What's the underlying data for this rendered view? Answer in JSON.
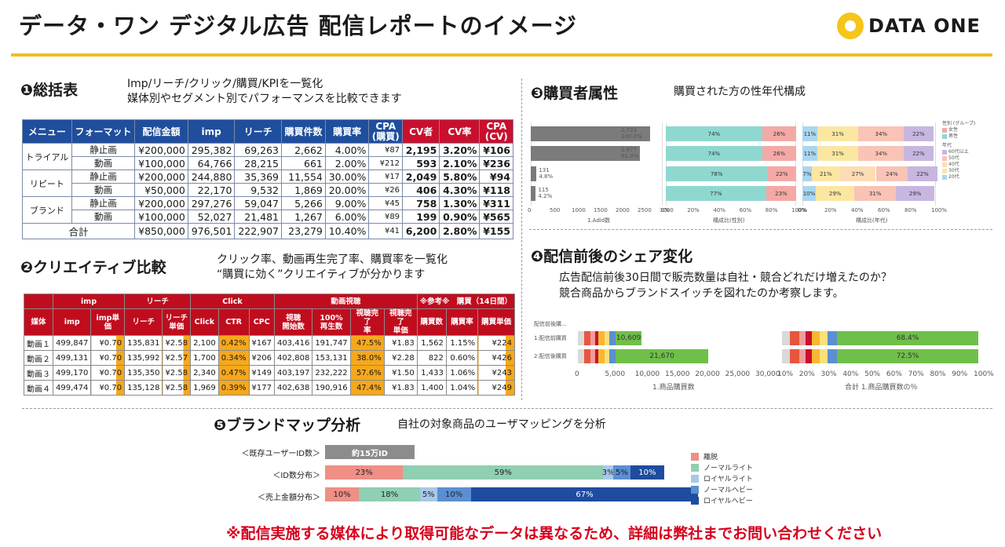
{
  "header": {
    "title": "データ・ワン デジタル広告 配信レポートのイメージ",
    "logo_text": "DATA ONE",
    "accent_color": "#f2be1a"
  },
  "s1": {
    "title": "❶総括表",
    "desc1": "Imp/リーチ/クリック/購買/KPIを一覧化",
    "desc2": "媒体別やセグメント別でパフォーマンスを比較できます",
    "headers": [
      "メニュー",
      "フォーマット",
      "配信金額",
      "imp",
      "リーチ",
      "購買件数",
      "購買率",
      "CPA\n(購買)",
      "CV者",
      "CV率",
      "CPA\n(CV)"
    ],
    "groups": [
      "トライアル",
      "リピート",
      "ブランド"
    ],
    "rows": [
      [
        "静止画",
        "¥200,000",
        "295,382",
        "69,263",
        "2,662",
        "4.00%",
        "¥87",
        "2,195",
        "3.20%",
        "¥106"
      ],
      [
        "動画",
        "¥100,000",
        "64,766",
        "28,215",
        "661",
        "2.00%",
        "¥212",
        "593",
        "2.10%",
        "¥236"
      ],
      [
        "静止画",
        "¥200,000",
        "244,880",
        "35,369",
        "11,554",
        "30.00%",
        "¥17",
        "2,049",
        "5.80%",
        "¥94"
      ],
      [
        "動画",
        "¥50,000",
        "22,170",
        "9,532",
        "1,869",
        "20.00%",
        "¥26",
        "406",
        "4.30%",
        "¥118"
      ],
      [
        "静止画",
        "¥200,000",
        "297,276",
        "59,047",
        "5,266",
        "9.00%",
        "¥45",
        "758",
        "1.30%",
        "¥311"
      ],
      [
        "動画",
        "¥100,000",
        "52,027",
        "21,481",
        "1,267",
        "6.00%",
        "¥89",
        "199",
        "0.90%",
        "¥565"
      ]
    ],
    "total": [
      "合計",
      "¥850,000",
      "976,501",
      "222,907",
      "23,279",
      "10.40%",
      "¥41",
      "6,200",
      "2.80%",
      "¥155"
    ]
  },
  "s2": {
    "title": "❷クリエイティブ比較",
    "desc1": "クリック率、動画再生完了率、購買率を一覧化",
    "desc2": "“購買に効く”クリエイティブが分かります",
    "group_headers": [
      "imp",
      "リーチ",
      "Click",
      "動画視聴",
      "※参考※　購買（14日間）"
    ],
    "headers": [
      "媒体",
      "imp",
      "imp単価",
      "リーチ",
      "リーチ\n単価",
      "Click",
      "CTR",
      "CPC",
      "視聴\n開始数",
      "100%\n再生数",
      "視聴完了\n率",
      "視聴完了\n単価",
      "購買数",
      "購買率",
      "購買単価"
    ],
    "rows": [
      [
        "動画１",
        "499,847",
        "¥0.70",
        "135,831",
        "¥2.58",
        "2,100",
        "0.42%",
        "¥167",
        "403,416",
        "191,747",
        "47.5%",
        "¥1.83",
        "1,562",
        "1.15%",
        "¥224"
      ],
      [
        "動画２",
        "499,131",
        "¥0.70",
        "135,992",
        "¥2.57",
        "1,700",
        "0.34%",
        "¥206",
        "402,808",
        "153,131",
        "38.0%",
        "¥2.28",
        "822",
        "0.60%",
        "¥426"
      ],
      [
        "動画３",
        "499,170",
        "¥0.70",
        "135,350",
        "¥2.58",
        "2,340",
        "0.47%",
        "¥149",
        "403,197",
        "232,222",
        "57.6%",
        "¥1.50",
        "1,433",
        "1.06%",
        "¥243"
      ],
      [
        "動画４",
        "499,474",
        "¥0.70",
        "135,128",
        "¥2.58",
        "1,969",
        "0.39%",
        "¥177",
        "402,638",
        "190,916",
        "47.4%",
        "¥1.83",
        "1,400",
        "1.04%",
        "¥249"
      ]
    ]
  },
  "s3": {
    "title": "❸購買者属性",
    "desc": "購買された方の性年代構成",
    "count_labels": [
      [
        "2,723",
        "100.0%"
      ],
      [
        "2,477",
        "91.0%"
      ],
      [
        "131",
        "4.8%"
      ],
      [
        "115",
        "4.2%"
      ]
    ],
    "left_ticks": [
      "0",
      "500",
      "1000",
      "1500",
      "2000",
      "2500",
      "3000"
    ],
    "left_axis_title": "1.Adid数",
    "pct_ticks": [
      "0%",
      "20%",
      "40%",
      "60%",
      "80%",
      "100%"
    ],
    "mid_axis_title": "構成比(性別)",
    "right_axis_title": "構成比(年代)",
    "legend_gender_title": "性別 (グループ)",
    "legend_gender": [
      "女性",
      "男性"
    ],
    "legend_age_title": "年代",
    "legend_age": [
      "60代以上",
      "50代",
      "40代",
      "30代",
      "20代"
    ]
  },
  "chart_data": [
    {
      "type": "bar",
      "title": "1.Adid数",
      "categories": [
        "row1",
        "row2",
        "row3",
        "row4"
      ],
      "values": [
        2723,
        2477,
        131,
        115
      ],
      "ylim": [
        0,
        3000
      ]
    },
    {
      "type": "bar",
      "title": "構成比(性別)",
      "series": [
        {
          "name": "男性",
          "values": [
            74,
            74,
            78,
            77
          ]
        },
        {
          "name": "女性",
          "values": [
            26,
            26,
            22,
            23
          ]
        }
      ]
    },
    {
      "type": "bar",
      "title": "構成比(年代)",
      "series": [
        {
          "name": "20代",
          "values": [
            11,
            11,
            7,
            10
          ]
        },
        {
          "name": "30代",
          "values": [
            31,
            31,
            21,
            29
          ]
        },
        {
          "name": "40代",
          "values": [
            0,
            0,
            27,
            0
          ]
        },
        {
          "name": "50代",
          "values": [
            34,
            34,
            24,
            31
          ]
        },
        {
          "name": "60代以上",
          "values": [
            22,
            22,
            22,
            29
          ]
        }
      ]
    },
    {
      "type": "bar",
      "title": "1.商品購買数",
      "categories": [
        "1:配信前購買",
        "2:配信後購買"
      ],
      "values": [
        10609,
        21670
      ],
      "xlim": [
        0,
        30000
      ]
    },
    {
      "type": "bar",
      "title": "合計 1.商品購買数の％",
      "categories": [
        "1:配信前購買",
        "2:配信後購買"
      ],
      "values": [
        68.4,
        72.5
      ]
    },
    {
      "type": "bar",
      "title": "ブランドマップ",
      "categories": [
        "ID数分布",
        "売上金額分布"
      ],
      "series": [
        {
          "name": "離脱",
          "values": [
            23,
            10
          ]
        },
        {
          "name": "ノーマルライト",
          "values": [
            59,
            18
          ]
        },
        {
          "name": "ロイヤルライト",
          "values": [
            3,
            5
          ]
        },
        {
          "name": "ノーマルヘビー",
          "values": [
            5,
            10
          ]
        },
        {
          "name": "ロイヤルヘビー",
          "values": [
            10,
            67
          ]
        }
      ]
    }
  ],
  "s4": {
    "title": "❹配信前後のシェア変化",
    "desc1": "広告配信前後30日間で販売数量は自社・競合どれだけ増えたのか？",
    "desc2": "競合商品からブランドスイッチを図れたのか考察します。",
    "header_label": "配信前後購...",
    "rows": [
      "1:配信前購買",
      "2:配信後購買"
    ],
    "count_values": [
      "10,609",
      "21,670"
    ],
    "pct_values": [
      "68.4%",
      "72.5%"
    ],
    "count_ticks": [
      "0",
      "5,000",
      "10,000",
      "15,000",
      "20,000",
      "25,000",
      "30,000"
    ],
    "pct_ticks": [
      "10%",
      "20%",
      "30%",
      "40%",
      "50%",
      "60%",
      "70%",
      "80%",
      "90%",
      "100%"
    ],
    "left_axis_title": "1.商品購買数",
    "right_axis_title": "合計 1.商品購買数の％"
  },
  "s5": {
    "title": "❺ブランドマップ分析",
    "desc": "自社の対象商品のユーザマッピングを分析",
    "label_existing": "＜既存ユーザーID数＞",
    "existing_value": "約15万ID",
    "label_id": "＜ID数分布＞",
    "label_sales": "＜売上金額分布＞",
    "id_pcts": [
      "23%",
      "59%",
      "3%",
      "5%",
      "10%"
    ],
    "sales_pcts": [
      "10%",
      "18%",
      "5%",
      "10%",
      "67%"
    ],
    "legend": [
      "離脱",
      "ノーマルライト",
      "ロイヤルライト",
      "ノーマルヘビー",
      "ロイヤルヘビー"
    ],
    "colors": [
      "#ef8f86",
      "#8fcfb2",
      "#a7c8ea",
      "#5b8fd2",
      "#1f4c9e"
    ]
  },
  "note": "※配信実施する媒体により取得可能なデータは異なるため、詳細は弊社までお問い合わせください"
}
